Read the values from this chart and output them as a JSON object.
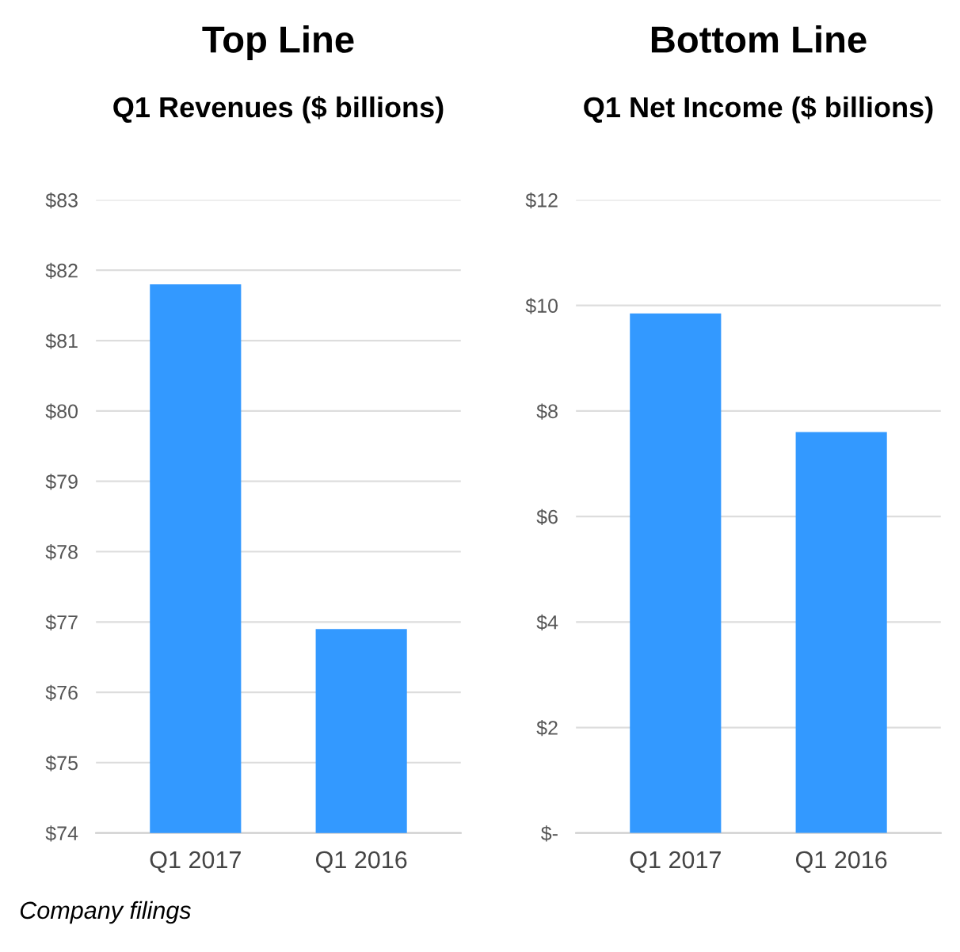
{
  "chart_data": [
    {
      "type": "bar",
      "title": "Top Line",
      "subtitle": "Q1 Revenues ($ billions)",
      "categories": [
        "Q1 2017",
        "Q1 2016"
      ],
      "values": [
        81.8,
        76.9
      ],
      "color": "#3399ff",
      "ylim": [
        74,
        83
      ],
      "yticks": [
        {
          "value": 74,
          "label": "$74"
        },
        {
          "value": 75,
          "label": "$75"
        },
        {
          "value": 76,
          "label": "$76"
        },
        {
          "value": 77,
          "label": "$77"
        },
        {
          "value": 78,
          "label": "$78"
        },
        {
          "value": 79,
          "label": "$79"
        },
        {
          "value": 80,
          "label": "$80"
        },
        {
          "value": 81,
          "label": "$81"
        },
        {
          "value": 82,
          "label": "$82"
        },
        {
          "value": 83,
          "label": "$83"
        }
      ],
      "grid": "y",
      "annotations": [
        "Company filings"
      ]
    },
    {
      "type": "bar",
      "title": "Bottom Line",
      "subtitle": "Q1 Net Income ($ billions)",
      "categories": [
        "Q1 2017",
        "Q1 2016"
      ],
      "values": [
        9.85,
        7.6
      ],
      "color": "#3399ff",
      "ylim": [
        0,
        12
      ],
      "yticks": [
        {
          "value": 0,
          "label": "$-"
        },
        {
          "value": 2,
          "label": "$2"
        },
        {
          "value": 4,
          "label": "$4"
        },
        {
          "value": 6,
          "label": "$6"
        },
        {
          "value": 8,
          "label": "$8"
        },
        {
          "value": 10,
          "label": "$10"
        },
        {
          "value": 12,
          "label": "$12"
        }
      ],
      "grid": "y"
    }
  ]
}
